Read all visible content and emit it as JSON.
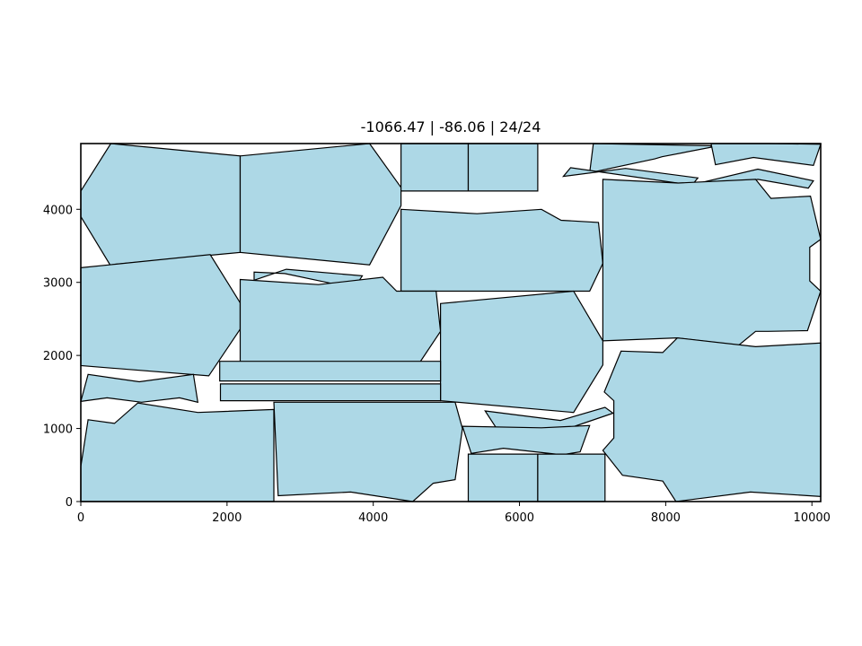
{
  "chart_data": {
    "type": "polygon-packing",
    "title": "-1066.47 | -86.06 | 24/24",
    "xlabel": "",
    "ylabel": "",
    "xlim": [
      0,
      10120
    ],
    "ylim": [
      0,
      4900
    ],
    "xticks": [
      0,
      2000,
      4000,
      6000,
      8000,
      10000
    ],
    "xtick_labels": [
      "0",
      "2000",
      "4000",
      "6000",
      "8000",
      "10000"
    ],
    "yticks": [
      0,
      1000,
      2000,
      3000,
      4000
    ],
    "ytick_labels": [
      "0",
      "1000",
      "2000",
      "3000",
      "4000"
    ],
    "grid": false,
    "fill_color": "#add8e6",
    "edge_color": "#000000",
    "polygons": [
      {
        "points": [
          [
            0,
            4250
          ],
          [
            410,
            4900
          ],
          [
            2180,
            4730
          ],
          [
            2180,
            3410
          ],
          [
            400,
            3240
          ],
          [
            0,
            3900
          ]
        ]
      },
      {
        "points": [
          [
            2180,
            4730
          ],
          [
            3950,
            4900
          ],
          [
            4380,
            4300
          ],
          [
            4380,
            4050
          ],
          [
            3950,
            3240
          ],
          [
            2180,
            3410
          ]
        ]
      },
      {
        "points": [
          [
            4380,
            4900
          ],
          [
            5300,
            4900
          ],
          [
            5300,
            4250
          ],
          [
            4380,
            4250
          ]
        ]
      },
      {
        "points": [
          [
            5300,
            4900
          ],
          [
            6250,
            4900
          ],
          [
            6250,
            4250
          ],
          [
            5300,
            4250
          ]
        ]
      },
      {
        "points": [
          [
            7010,
            4900
          ],
          [
            8620,
            4870
          ],
          [
            8620,
            4850
          ],
          [
            7950,
            4720
          ],
          [
            7850,
            4690
          ],
          [
            6960,
            4500
          ]
        ]
      },
      {
        "points": [
          [
            8620,
            4900
          ],
          [
            9400,
            4900
          ],
          [
            10120,
            4890
          ],
          [
            10020,
            4600
          ],
          [
            9200,
            4710
          ],
          [
            8680,
            4610
          ]
        ]
      },
      {
        "points": [
          [
            7450,
            4560
          ],
          [
            8440,
            4430
          ],
          [
            8360,
            4330
          ],
          [
            6700,
            4570
          ],
          [
            6600,
            4450
          ]
        ]
      },
      {
        "points": [
          [
            8500,
            4370
          ],
          [
            9260,
            4550
          ],
          [
            10020,
            4390
          ],
          [
            9950,
            4290
          ],
          [
            9260,
            4410
          ],
          [
            8560,
            4260
          ]
        ]
      },
      {
        "points": [
          [
            4380,
            4000
          ],
          [
            5420,
            3940
          ],
          [
            6300,
            4000
          ],
          [
            6570,
            3850
          ],
          [
            7080,
            3820
          ],
          [
            7140,
            3260
          ],
          [
            6960,
            2880
          ],
          [
            4380,
            2880
          ]
        ]
      },
      {
        "points": [
          [
            7140,
            4410
          ],
          [
            8170,
            4360
          ],
          [
            9230,
            4410
          ],
          [
            9440,
            4150
          ],
          [
            9980,
            4180
          ],
          [
            10120,
            3590
          ],
          [
            9970,
            3480
          ],
          [
            9970,
            3020
          ],
          [
            10120,
            2880
          ],
          [
            9940,
            2340
          ],
          [
            9400,
            2330
          ],
          [
            9230,
            2330
          ],
          [
            9000,
            2140
          ],
          [
            8150,
            2240
          ],
          [
            7140,
            2200
          ]
        ]
      },
      {
        "points": [
          [
            0,
            3200
          ],
          [
            1770,
            3380
          ],
          [
            2180,
            2720
          ],
          [
            2180,
            2360
          ],
          [
            1750,
            1720
          ],
          [
            0,
            1860
          ]
        ]
      },
      {
        "points": [
          [
            2370,
            3030
          ],
          [
            2810,
            3180
          ],
          [
            3850,
            3090
          ],
          [
            3740,
            2920
          ],
          [
            2790,
            3120
          ],
          [
            2370,
            3140
          ]
        ]
      },
      {
        "points": [
          [
            2180,
            3040
          ],
          [
            3250,
            2970
          ],
          [
            4130,
            3070
          ],
          [
            4320,
            2880
          ],
          [
            4860,
            2880
          ],
          [
            4920,
            2330
          ],
          [
            4640,
            1910
          ],
          [
            2180,
            1910
          ]
        ]
      },
      {
        "points": [
          [
            4920,
            2710
          ],
          [
            6740,
            2880
          ],
          [
            7140,
            2200
          ],
          [
            7140,
            1870
          ],
          [
            6740,
            1220
          ],
          [
            4920,
            1380
          ]
        ]
      },
      {
        "points": [
          [
            1900,
            1920
          ],
          [
            4920,
            1920
          ],
          [
            4920,
            1650
          ],
          [
            1900,
            1650
          ]
        ]
      },
      {
        "points": [
          [
            1910,
            1610
          ],
          [
            4920,
            1610
          ],
          [
            4920,
            1380
          ],
          [
            1910,
            1380
          ]
        ]
      },
      {
        "points": [
          [
            0,
            1370
          ],
          [
            360,
            1420
          ],
          [
            830,
            1360
          ],
          [
            1350,
            1420
          ],
          [
            1600,
            1360
          ],
          [
            1540,
            1740
          ],
          [
            800,
            1640
          ],
          [
            100,
            1740
          ]
        ]
      },
      {
        "points": [
          [
            100,
            1120
          ],
          [
            460,
            1070
          ],
          [
            780,
            1350
          ],
          [
            1600,
            1220
          ],
          [
            2640,
            1260
          ],
          [
            2640,
            0
          ],
          [
            0,
            0
          ],
          [
            0,
            480
          ]
        ]
      },
      {
        "points": [
          [
            2640,
            1360
          ],
          [
            5120,
            1360
          ],
          [
            5220,
            1000
          ],
          [
            5120,
            300
          ],
          [
            4820,
            250
          ],
          [
            4540,
            0
          ],
          [
            3690,
            130
          ],
          [
            2700,
            80
          ]
        ]
      },
      {
        "points": [
          [
            5530,
            1240
          ],
          [
            6560,
            1110
          ],
          [
            7170,
            1290
          ],
          [
            7280,
            1210
          ],
          [
            6550,
            960
          ],
          [
            5700,
            980
          ]
        ]
      },
      {
        "points": [
          [
            5220,
            1030
          ],
          [
            6300,
            1010
          ],
          [
            6960,
            1040
          ],
          [
            6830,
            680
          ],
          [
            6580,
            640
          ],
          [
            5780,
            730
          ],
          [
            5340,
            660
          ]
        ]
      },
      {
        "points": [
          [
            5300,
            650
          ],
          [
            6250,
            650
          ],
          [
            6250,
            0
          ],
          [
            5300,
            0
          ]
        ]
      },
      {
        "points": [
          [
            6250,
            650
          ],
          [
            7170,
            650
          ],
          [
            7170,
            0
          ],
          [
            6250,
            0
          ]
        ]
      },
      {
        "points": [
          [
            7390,
            2060
          ],
          [
            7960,
            2040
          ],
          [
            8160,
            2240
          ],
          [
            9230,
            2120
          ],
          [
            10120,
            2170
          ],
          [
            10120,
            70
          ],
          [
            9160,
            130
          ],
          [
            8140,
            0
          ],
          [
            7960,
            280
          ],
          [
            7410,
            360
          ],
          [
            7140,
            700
          ],
          [
            7290,
            870
          ],
          [
            7290,
            1380
          ],
          [
            7160,
            1500
          ]
        ]
      }
    ]
  }
}
